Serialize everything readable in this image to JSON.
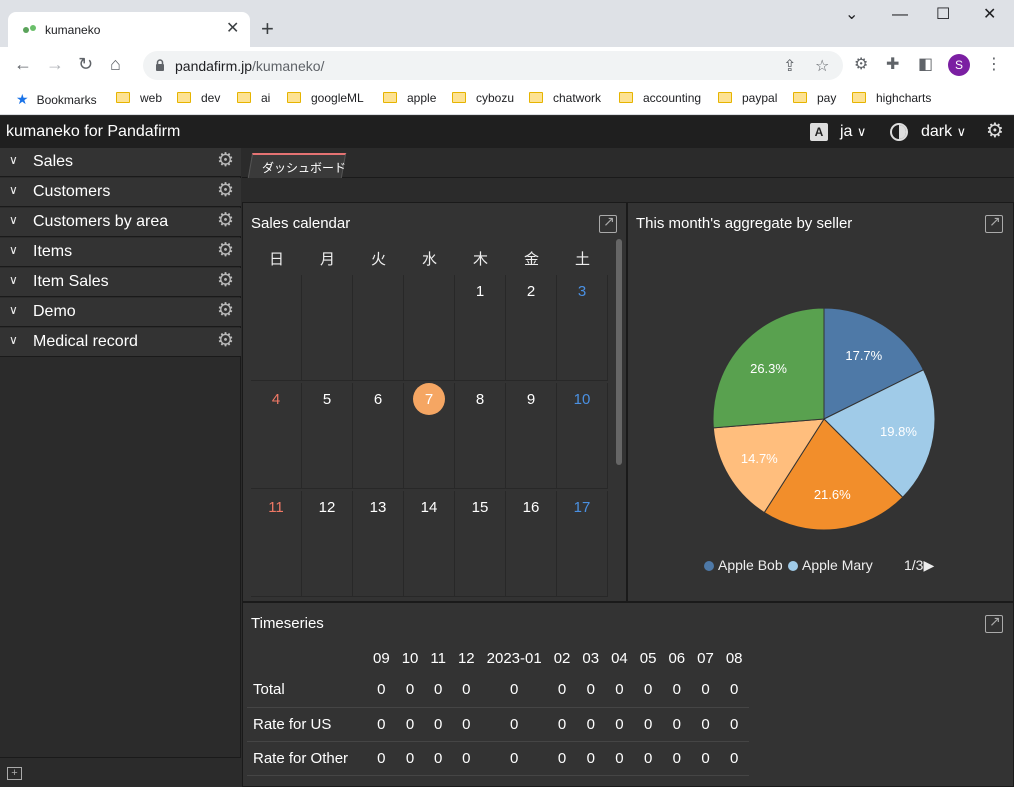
{
  "browser": {
    "tab_title": "kumaneko",
    "url_host": "pandafirm.jp",
    "url_path": "/kumaneko/",
    "avatar_letter": "S",
    "bookmarks": [
      "Bookmarks",
      "web",
      "dev",
      "ai",
      "googleML",
      "apple",
      "cybozu",
      "chatwork",
      "accounting",
      "paypal",
      "pay",
      "highcharts"
    ]
  },
  "app": {
    "title": "kumaneko for Pandafirm",
    "lang_icon": "A",
    "language": "ja",
    "theme": "dark"
  },
  "sidebar": {
    "items": [
      {
        "label": "Sales"
      },
      {
        "label": "Customers"
      },
      {
        "label": "Customers by area"
      },
      {
        "label": "Items"
      },
      {
        "label": "Item Sales"
      },
      {
        "label": "Demo"
      },
      {
        "label": "Medical record"
      }
    ]
  },
  "dashboard": {
    "tab_label": "ダッシュボード"
  },
  "calendar": {
    "title": "Sales calendar",
    "weekdays": [
      "日",
      "月",
      "火",
      "水",
      "木",
      "金",
      "土"
    ],
    "weeks": [
      [
        "",
        "",
        "",
        "",
        "1",
        "2",
        "3"
      ],
      [
        "4",
        "5",
        "6",
        "7",
        "8",
        "9",
        "10"
      ],
      [
        "11",
        "12",
        "13",
        "14",
        "15",
        "16",
        "17"
      ]
    ],
    "today": "7"
  },
  "pie": {
    "title": "This month's aggregate by seller",
    "legend": [
      {
        "name": "Apple Bob",
        "color": "#4e79a7"
      },
      {
        "name": "Apple Mary",
        "color": "#a0cbe8"
      }
    ],
    "legend_page": "1/3▶"
  },
  "chart_data": {
    "type": "pie",
    "title": "This month's aggregate by seller",
    "slices": [
      {
        "label": "Apple Bob",
        "value": 17.7,
        "color": "#4e79a7",
        "text": "17.7%"
      },
      {
        "label": "Apple Mary",
        "value": 19.8,
        "color": "#a0cbe8",
        "text": "19.8%"
      },
      {
        "label": "",
        "value": 21.6,
        "color": "#f28e2b",
        "text": "21.6%"
      },
      {
        "label": "",
        "value": 14.7,
        "color": "#ffbe7d",
        "text": "14.7%"
      },
      {
        "label": "",
        "value": 26.3,
        "color": "#59a14f",
        "text": "26.3%"
      }
    ]
  },
  "timeseries": {
    "title": "Timeseries",
    "columns": [
      "09",
      "10",
      "11",
      "12",
      "2023-01",
      "02",
      "03",
      "04",
      "05",
      "06",
      "07",
      "08"
    ],
    "rows": [
      {
        "label": "Total",
        "values": [
          "0",
          "0",
          "0",
          "0",
          "0",
          "0",
          "0",
          "0",
          "0",
          "0",
          "0",
          "0"
        ]
      },
      {
        "label": "Rate for US",
        "values": [
          "0",
          "0",
          "0",
          "0",
          "0",
          "0",
          "0",
          "0",
          "0",
          "0",
          "0",
          "0"
        ]
      },
      {
        "label": "Rate for Other",
        "values": [
          "0",
          "0",
          "0",
          "0",
          "0",
          "0",
          "0",
          "0",
          "0",
          "0",
          "0",
          "0"
        ]
      }
    ]
  }
}
